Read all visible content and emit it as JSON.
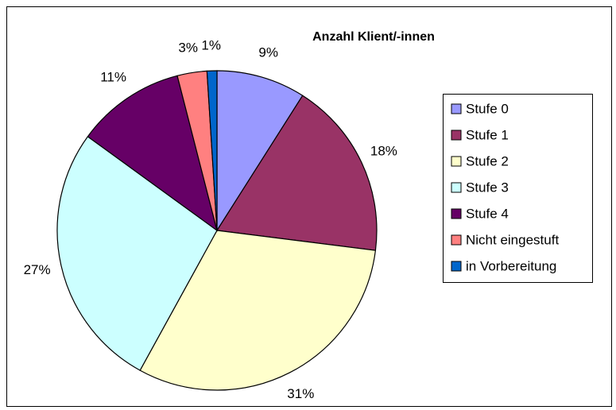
{
  "chart_data": {
    "type": "pie",
    "title": "Anzahl Klient/-innen",
    "categories": [
      "Stufe 0",
      "Stufe 1",
      "Stufe 2",
      "Stufe 3",
      "Stufe 4",
      "Nicht eingestuft",
      "in Vorbereitung"
    ],
    "values": [
      9,
      18,
      31,
      27,
      11,
      3,
      1
    ],
    "value_labels": [
      "9%",
      "18%",
      "31%",
      "27%",
      "11%",
      "3%",
      "1%"
    ],
    "colors": [
      "#9999ff",
      "#993366",
      "#ffffcc",
      "#ccffff",
      "#660066",
      "#ff8080",
      "#0066cc"
    ],
    "legend": "right"
  }
}
